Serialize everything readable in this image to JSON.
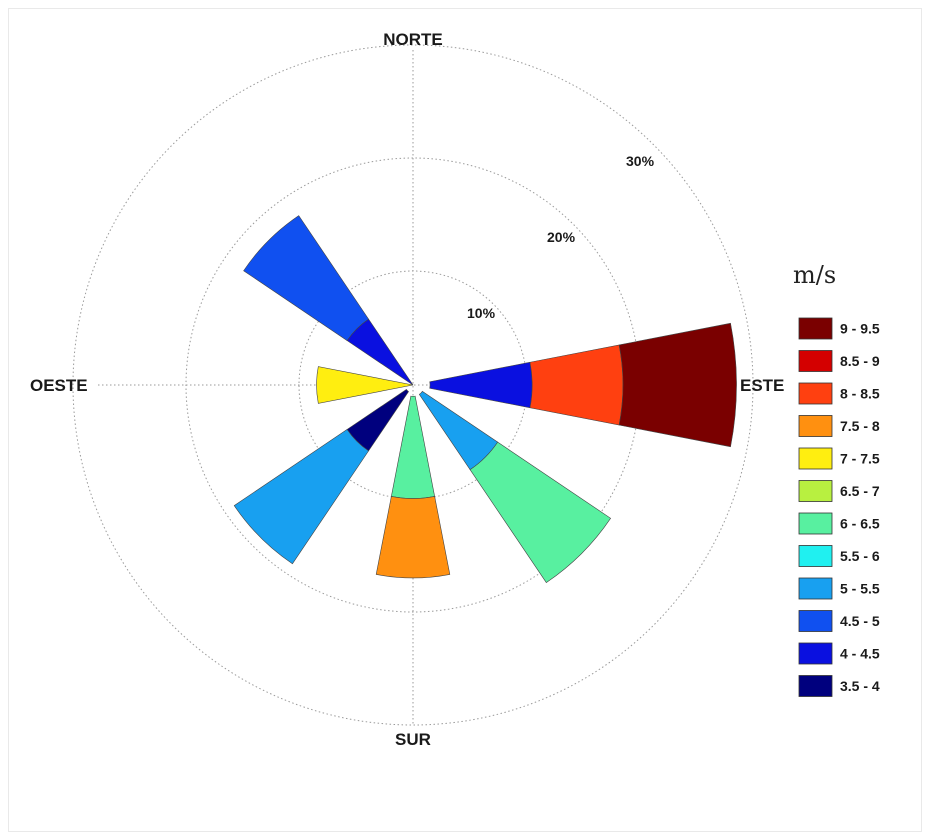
{
  "chart_data": {
    "type": "wind-rose",
    "directions": {
      "north": "NORTE",
      "east": "ESTE",
      "south": "SUR",
      "west": "OESTE"
    },
    "rings": [
      {
        "value": 10,
        "label": "10%"
      },
      {
        "value": 20,
        "label": "20%"
      },
      {
        "value": 30,
        "label": "30%"
      }
    ],
    "rmax": 35,
    "legend": {
      "title": "m/s",
      "placement": "right",
      "bins": [
        {
          "label": "9 - 9.5",
          "color": "#7a0000"
        },
        {
          "label": "8.5 - 9",
          "color": "#d40000"
        },
        {
          "label": "8 - 8.5",
          "color": "#ff4010"
        },
        {
          "label": "7.5 - 8",
          "color": "#ff9010"
        },
        {
          "label": "7 - 7.5",
          "color": "#ffee10"
        },
        {
          "label": "6.5 - 7",
          "color": "#b8f040"
        },
        {
          "label": "6 - 6.5",
          "color": "#58f0a0"
        },
        {
          "label": "5.5 - 6",
          "color": "#20f0f0"
        },
        {
          "label": "5 - 5.5",
          "color": "#18a0f0"
        },
        {
          "label": "4.5 - 5",
          "color": "#1050f0"
        },
        {
          "label": "4 - 4.5",
          "color": "#0a10e0"
        },
        {
          "label": "3.5 - 4",
          "color": "#00007e"
        }
      ]
    },
    "series": [
      {
        "direction_deg": 90,
        "segments": [
          {
            "bin": "4 - 4.5",
            "from": 1.5,
            "to": 10.5
          },
          {
            "bin": "8 - 8.5",
            "from": 10.5,
            "to": 18.5
          },
          {
            "bin": "9 - 9.5",
            "from": 18.5,
            "to": 28.5
          }
        ]
      },
      {
        "direction_deg": 135,
        "segments": [
          {
            "bin": "5 - 5.5",
            "from": 1,
            "to": 9
          },
          {
            "bin": "6 - 6.5",
            "from": 9,
            "to": 21
          }
        ]
      },
      {
        "direction_deg": 180,
        "segments": [
          {
            "bin": "6 - 6.5",
            "from": 1,
            "to": 10
          },
          {
            "bin": "7.5 - 8",
            "from": 10,
            "to": 17
          }
        ]
      },
      {
        "direction_deg": 225,
        "segments": [
          {
            "bin": "3.5 - 4",
            "from": 0.7,
            "to": 7
          },
          {
            "bin": "5 - 5.5",
            "from": 7,
            "to": 19
          }
        ]
      },
      {
        "direction_deg": 270,
        "segments": [
          {
            "bin": "7 - 7.5",
            "from": 0,
            "to": 8.5
          }
        ]
      },
      {
        "direction_deg": 315,
        "segments": [
          {
            "bin": "4 - 4.5",
            "from": 0,
            "to": 7
          },
          {
            "bin": "4.5 - 5",
            "from": 7,
            "to": 18
          }
        ]
      }
    ]
  }
}
